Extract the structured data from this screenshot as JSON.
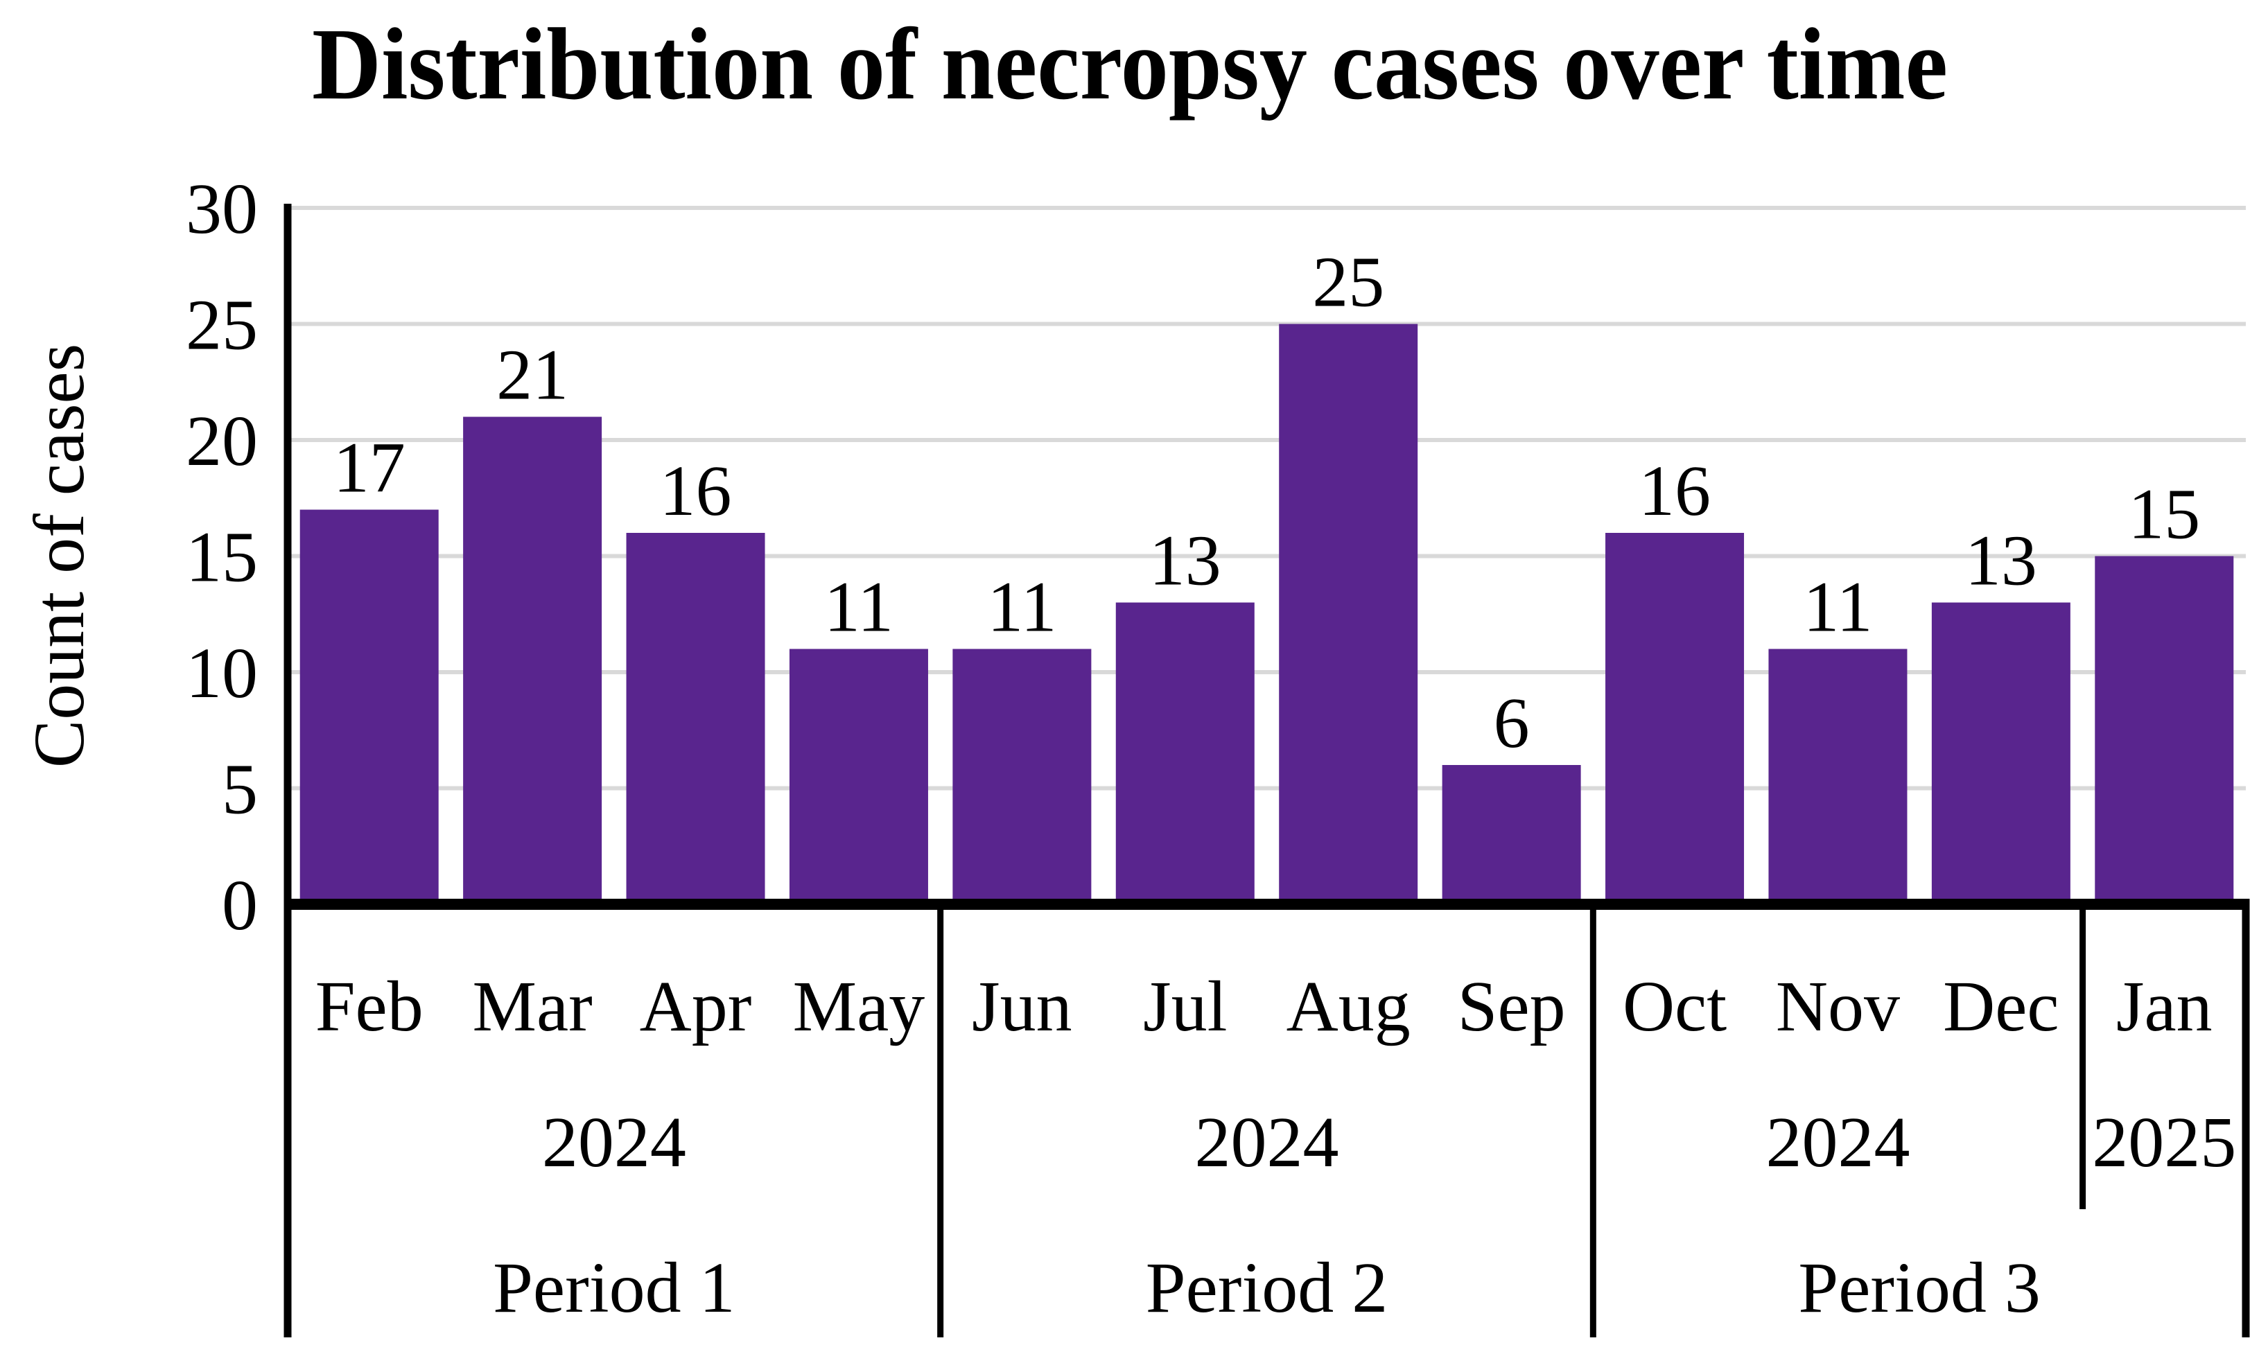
{
  "chart_data": {
    "type": "bar",
    "title": "Distribution of necropsy cases over time",
    "ylabel": "Count of cases",
    "xlabel": "",
    "ylim": [
      0,
      30
    ],
    "yticks": [
      0,
      5,
      10,
      15,
      20,
      25,
      30
    ],
    "grid": "horizontal",
    "legend": "none",
    "data_labels_shown": true,
    "colors": {
      "bar": "#59258E",
      "gridline": "#D9D9D9",
      "axis": "#000000",
      "text": "#000000",
      "background": "#FFFFFF"
    },
    "categories": [
      "Feb",
      "Mar",
      "Apr",
      "May",
      "Jun",
      "Jul",
      "Aug",
      "Sep",
      "Oct",
      "Nov",
      "Dec",
      "Jan"
    ],
    "points": [
      {
        "month": "Feb",
        "value": 17
      },
      {
        "month": "Mar",
        "value": 21
      },
      {
        "month": "Apr",
        "value": 16
      },
      {
        "month": "May",
        "value": 11
      },
      {
        "month": "Jun",
        "value": 11
      },
      {
        "month": "Jul",
        "value": 13
      },
      {
        "month": "Aug",
        "value": 25
      },
      {
        "month": "Sep",
        "value": 6
      },
      {
        "month": "Oct",
        "value": 16
      },
      {
        "month": "Nov",
        "value": 11
      },
      {
        "month": "Dec",
        "value": 13
      },
      {
        "month": "Jan",
        "value": 15
      }
    ],
    "year_groups": [
      {
        "year": "2024",
        "start": 0,
        "end": 4
      },
      {
        "year": "2024",
        "start": 4,
        "end": 8
      },
      {
        "year": "2024",
        "start": 8,
        "end": 11
      },
      {
        "year": "2025",
        "start": 11,
        "end": 12
      }
    ],
    "period_groups": [
      {
        "label": "Period 1",
        "start": 0,
        "end": 4
      },
      {
        "label": "Period 2",
        "start": 4,
        "end": 8
      },
      {
        "label": "Period 3",
        "start": 8,
        "end": 12
      }
    ]
  }
}
